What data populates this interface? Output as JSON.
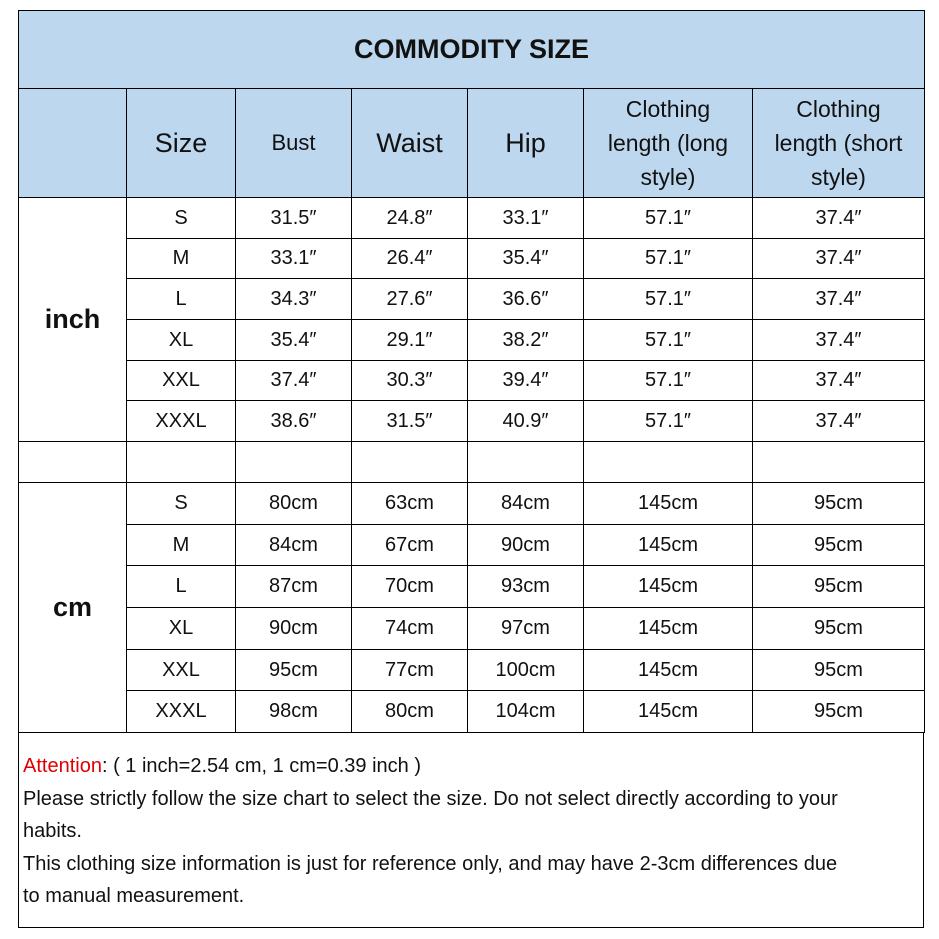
{
  "header": {
    "title": "COMMODITY SIZE"
  },
  "table": {
    "columns": [
      "Size",
      "Bust",
      "Waist",
      "Hip",
      "Clothing length (long style)",
      "Clothing length (short style)"
    ],
    "sections": [
      {
        "unit": "inch",
        "rows": [
          [
            "S",
            "31.5″",
            "24.8″",
            "33.1″",
            "57.1″",
            "37.4″"
          ],
          [
            "M",
            "33.1″",
            "26.4″",
            "35.4″",
            "57.1″",
            "37.4″"
          ],
          [
            "L",
            "34.3″",
            "27.6″",
            "36.6″",
            "57.1″",
            "37.4″"
          ],
          [
            "XL",
            "35.4″",
            "29.1″",
            "38.2″",
            "57.1″",
            "37.4″"
          ],
          [
            "XXL",
            "37.4″",
            "30.3″",
            "39.4″",
            "57.1″",
            "37.4″"
          ],
          [
            "XXXL",
            "38.6″",
            "31.5″",
            "40.9″",
            "57.1″",
            "37.4″"
          ]
        ]
      },
      {
        "unit": "cm",
        "rows": [
          [
            "S",
            "80cm",
            "63cm",
            "84cm",
            "145cm",
            "95cm"
          ],
          [
            "M",
            "84cm",
            "67cm",
            "90cm",
            "145cm",
            "95cm"
          ],
          [
            "L",
            "87cm",
            "70cm",
            "93cm",
            "145cm",
            "95cm"
          ],
          [
            "XL",
            "90cm",
            "74cm",
            "97cm",
            "145cm",
            "95cm"
          ],
          [
            "XXL",
            "95cm",
            "77cm",
            "100cm",
            "145cm",
            "95cm"
          ],
          [
            "XXXL",
            "98cm",
            "80cm",
            "104cm",
            "145cm",
            "95cm"
          ]
        ]
      }
    ]
  },
  "notes": {
    "attention_label": "Attention",
    "attention_text": ":  ( 1 inch=2.54 cm, 1 cm=0.39 inch )",
    "paragraphs": [
      "Please strictly follow the size chart  to select the size.  Do not select directly according to your habits.",
      "This clothing size information is just for reference only, and may have 2-3cm differences due to manual measurement."
    ]
  }
}
